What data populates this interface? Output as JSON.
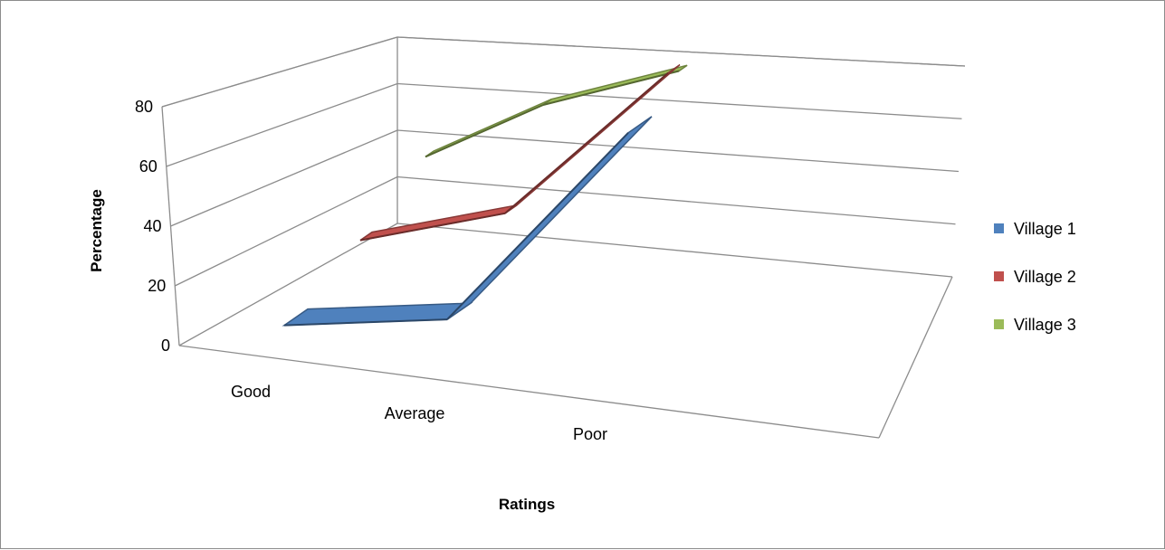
{
  "chart_data": {
    "type": "line",
    "subtype": "3d-line",
    "title": "",
    "xlabel": "Ratings",
    "ylabel": "Percentage",
    "categories": [
      "Good",
      "Average",
      "Poor"
    ],
    "yticks": [
      "0",
      "20",
      "40",
      "60",
      "80"
    ],
    "ylim": [
      0,
      80
    ],
    "grid": true,
    "legend_position": "right",
    "series": [
      {
        "name": "Village 1",
        "color": "#4f81bd",
        "values": [
          2,
          7,
          66
        ]
      },
      {
        "name": "Village 2",
        "color": "#c0504d",
        "values": [
          13,
          24,
          68
        ]
      },
      {
        "name": "Village 3",
        "color": "#9bbb59",
        "values": [
          29,
          50,
          65
        ]
      }
    ]
  }
}
